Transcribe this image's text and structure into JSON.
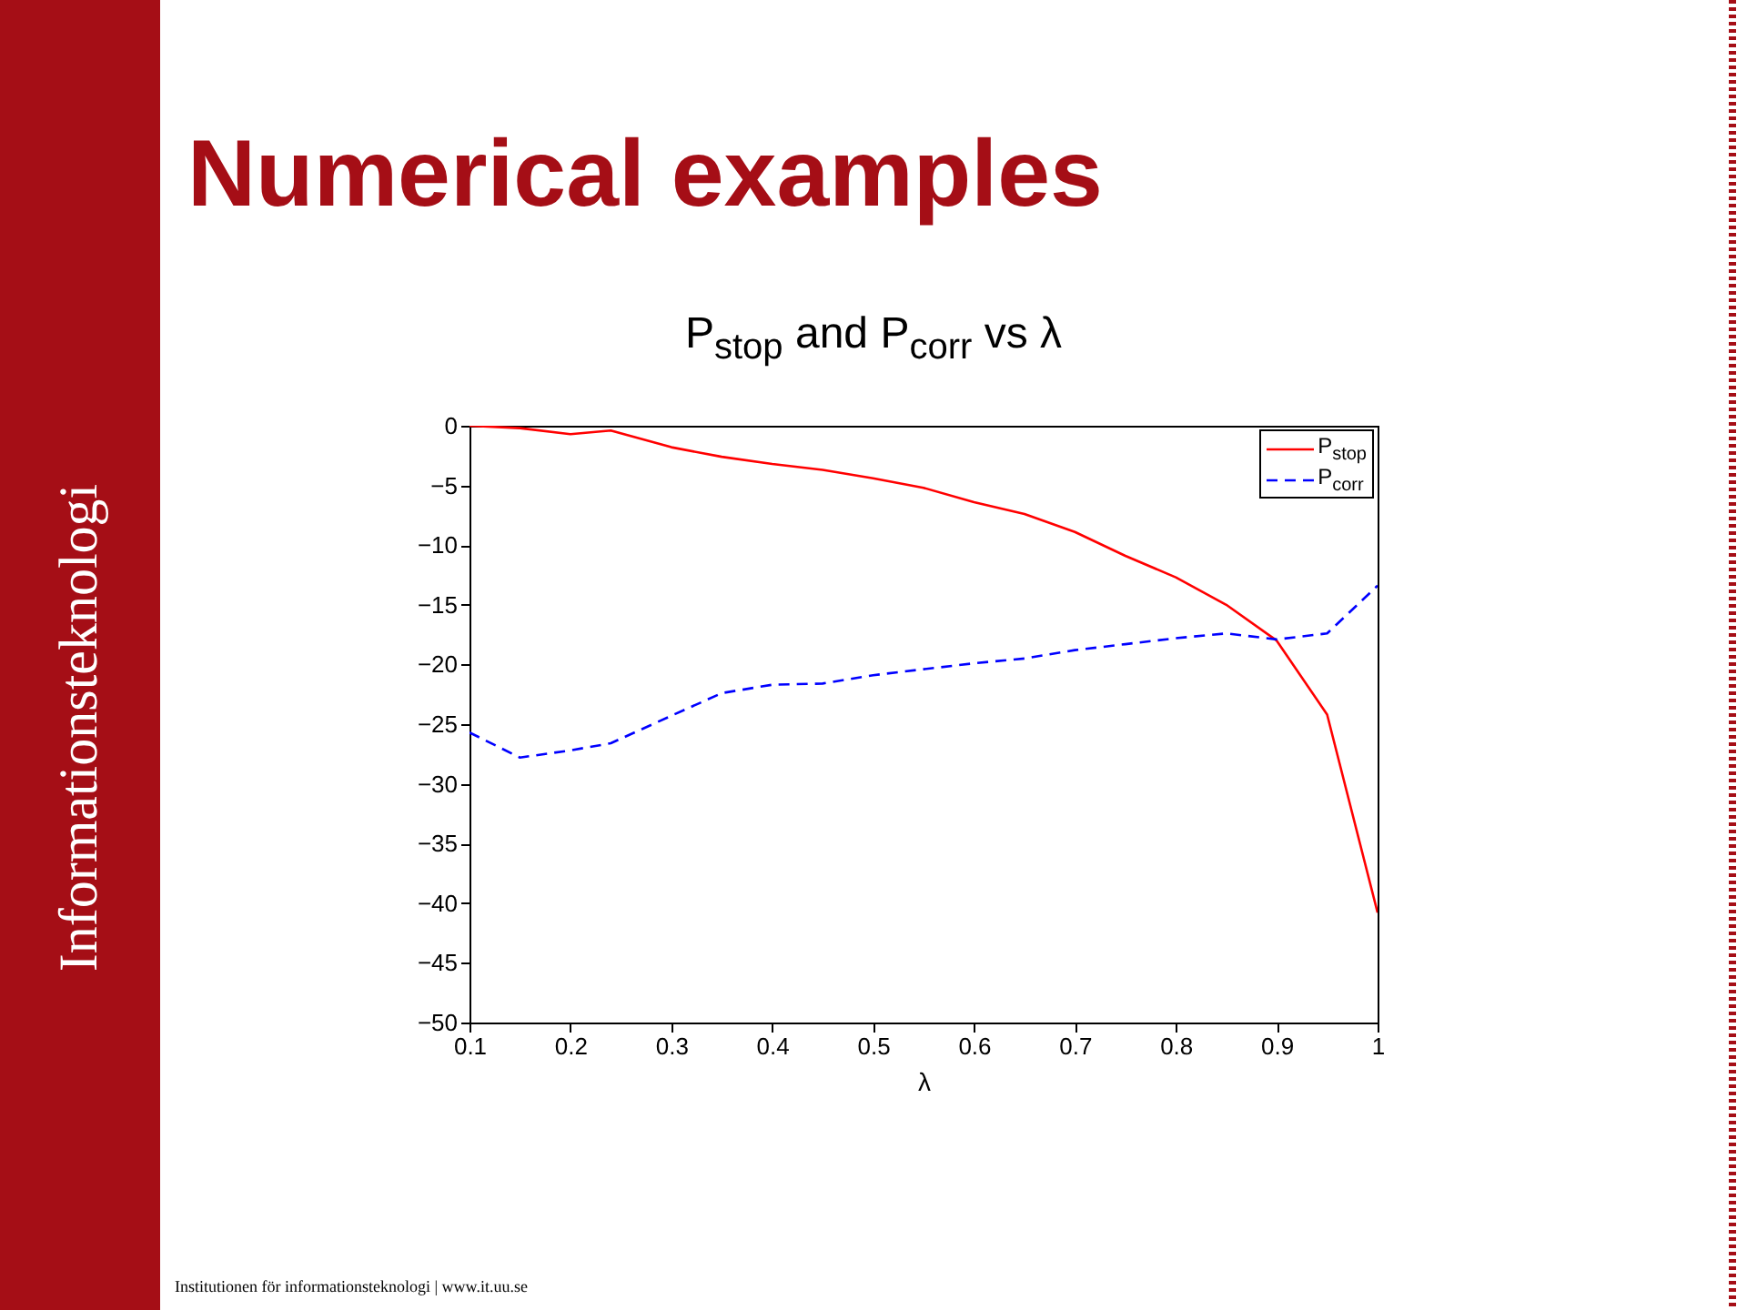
{
  "chart_data": {
    "type": "line",
    "title": "Numerical examples",
    "subtitle": "P$_{stop}$ and P$_{corr}$ vs λ",
    "xlabel": "λ",
    "annotations": [
      "Informationsteknologi",
      "Institutionen för informationsteknologi | www.it.uu.se"
    ],
    "x": [
      0.1,
      0.15,
      0.2,
      0.24,
      0.3,
      0.35,
      0.4,
      0.45,
      0.5,
      0.55,
      0.6,
      0.65,
      0.7,
      0.75,
      0.8,
      0.85,
      0.9,
      0.95,
      1
    ],
    "series": [
      {
        "name": "P$_{stop}$",
        "color": "#ff0000",
        "line_style": "solid",
        "values": [
          0,
          -0.2,
          -0.7,
          -0.4,
          -1.8,
          -2.6,
          -3.2,
          -3.7,
          -4.4,
          -5.2,
          -6.4,
          -7.4,
          -8.9,
          -10.9,
          -12.7,
          -15.0,
          -18.0,
          -24.2,
          -40.8
        ]
      },
      {
        "name": "P$_{corr}$",
        "color": "#0000ff",
        "line_style": "dashed",
        "values": [
          -25.7,
          -27.8,
          -27.2,
          -26.6,
          -24.3,
          -22.4,
          -21.7,
          -21.6,
          -20.9,
          -20.4,
          -19.9,
          -19.5,
          -18.8,
          -18.3,
          -17.8,
          -17.4,
          -17.9,
          -17.4,
          -13.4
        ]
      }
    ],
    "xlim": [
      0.1,
      1
    ],
    "xticks": [
      0.1,
      0.2,
      0.3,
      0.4,
      0.5,
      0.6,
      0.7,
      0.8,
      0.9,
      1
    ],
    "ylim": [
      -50,
      0
    ],
    "yticks": [
      -50,
      -45,
      -40,
      -35,
      -30,
      -25,
      -20,
      -15,
      -10,
      -5,
      0
    ],
    "grid": false,
    "legend": "top right",
    "marker": "none"
  }
}
